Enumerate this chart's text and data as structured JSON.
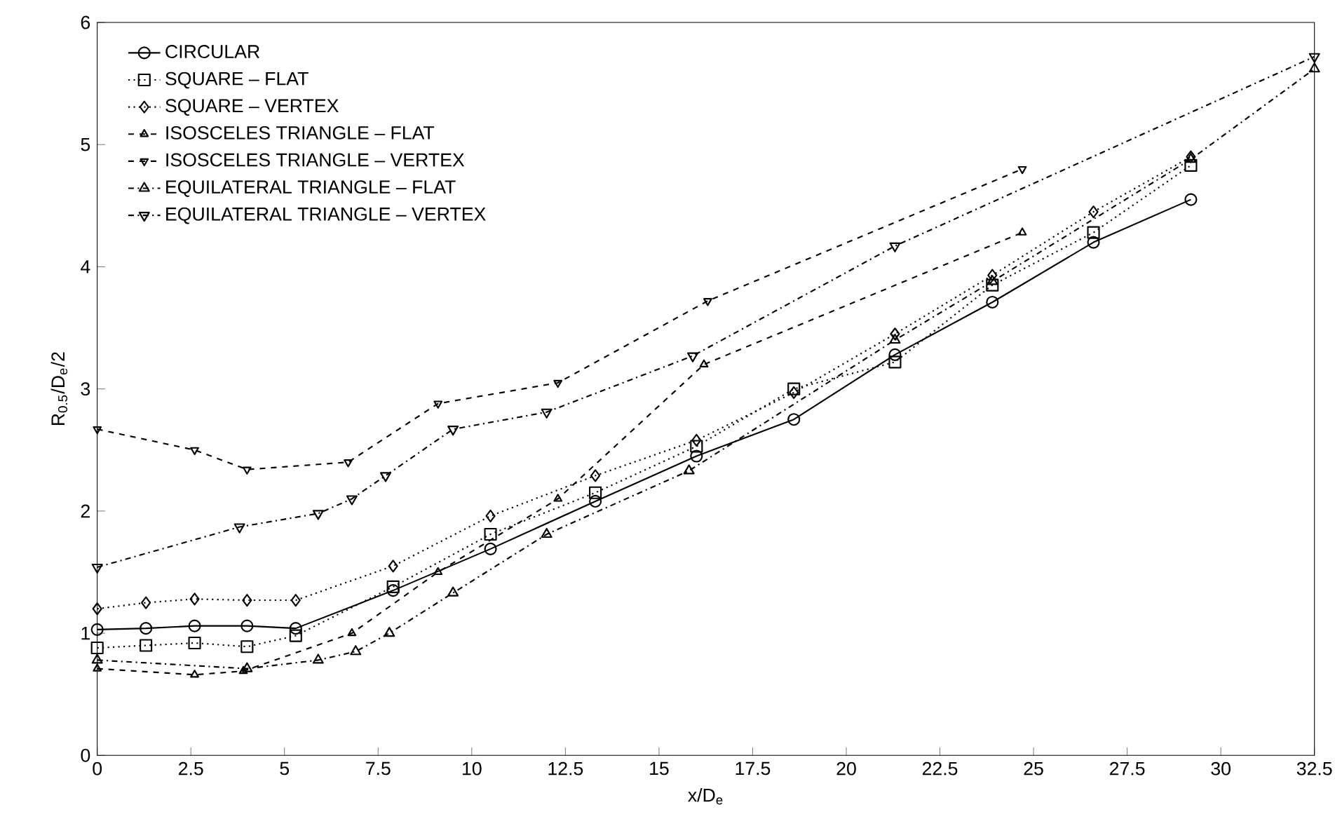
{
  "chart_data": {
    "type": "line",
    "xlabel": "x/D$_{e}$",
    "ylabel": "R$_{0.5}$/D$_{e}$/2",
    "xlim": [
      0,
      32.5
    ],
    "ylim": [
      0,
      6
    ],
    "xticks": [
      0,
      2.5,
      5,
      7.5,
      10,
      12.5,
      15,
      17.5,
      20,
      22.5,
      25,
      27.5,
      30,
      32.5
    ],
    "yticks": [
      0,
      1,
      2,
      3,
      4,
      5,
      6
    ],
    "grid": false,
    "legend": "top left",
    "series": [
      {
        "name": "CIRCULAR",
        "color": "#000000",
        "marker": "circle",
        "line_style": "solid",
        "x": [
          0,
          1.3,
          2.6,
          4.0,
          5.3,
          7.9,
          10.5,
          13.3,
          16.0,
          18.6,
          21.3,
          23.9,
          26.6,
          29.2
        ],
        "values": [
          1.03,
          1.04,
          1.06,
          1.06,
          1.04,
          1.35,
          1.69,
          2.08,
          2.45,
          2.75,
          3.28,
          3.71,
          4.2,
          4.55
        ]
      },
      {
        "name": "SQUARE – FLAT",
        "color": "#000000",
        "marker": "square",
        "line_style": "dotted",
        "x": [
          0,
          1.3,
          2.6,
          4.0,
          5.3,
          7.9,
          10.5,
          13.3,
          16.0,
          18.6,
          21.3,
          23.9,
          26.6,
          29.2
        ],
        "values": [
          0.88,
          0.9,
          0.92,
          0.89,
          0.98,
          1.38,
          1.81,
          2.15,
          2.53,
          3.0,
          3.22,
          3.85,
          4.28,
          4.83
        ]
      },
      {
        "name": "SQUARE – VERTEX",
        "color": "#000000",
        "marker": "diamond",
        "line_style": "dotted",
        "x": [
          0,
          1.3,
          2.6,
          4.0,
          5.3,
          7.9,
          10.5,
          13.3,
          16.0,
          18.6,
          21.3,
          23.9,
          26.6,
          29.2
        ],
        "values": [
          1.2,
          1.25,
          1.28,
          1.27,
          1.27,
          1.55,
          1.96,
          2.29,
          2.58,
          2.97,
          3.45,
          3.93,
          4.45,
          4.9
        ]
      },
      {
        "name": "ISOSCELES TRIANGLE – FLAT",
        "color": "#000000",
        "marker": "triangle",
        "line_style": "dashed",
        "x": [
          0,
          2.6,
          3.9,
          6.8,
          9.1,
          12.3,
          16.2,
          24.7
        ],
        "values": [
          0.71,
          0.66,
          0.69,
          1.0,
          1.5,
          2.1,
          3.2,
          4.28
        ]
      },
      {
        "name": "ISOSCELES TRIANGLE – VERTEX",
        "color": "#000000",
        "marker": "triangle-down",
        "line_style": "dashed",
        "x": [
          0,
          2.6,
          4.0,
          6.7,
          9.1,
          12.3,
          16.3,
          24.7
        ],
        "values": [
          2.67,
          2.5,
          2.34,
          2.4,
          2.88,
          3.05,
          3.72,
          4.8
        ]
      },
      {
        "name": "EQUILATERAL TRIANGLE – FLAT",
        "color": "#000000",
        "marker": "triangle",
        "line_style": "dashdot",
        "x": [
          0,
          4.0,
          5.9,
          6.9,
          7.8,
          9.5,
          12.0,
          15.8,
          21.3,
          23.9,
          29.2,
          32.5
        ],
        "values": [
          0.78,
          0.71,
          0.78,
          0.85,
          1.0,
          1.33,
          1.81,
          2.33,
          3.4,
          3.88,
          4.88,
          5.62
        ]
      },
      {
        "name": "EQUILATERAL TRIANGLE – VERTEX",
        "color": "#000000",
        "marker": "triangle-down",
        "line_style": "dashdot",
        "x": [
          0,
          3.8,
          5.9,
          6.8,
          7.7,
          9.5,
          12.0,
          15.9,
          21.3,
          32.5
        ],
        "values": [
          1.54,
          1.87,
          1.98,
          2.1,
          2.29,
          2.67,
          2.81,
          3.27,
          4.17,
          5.72
        ]
      }
    ]
  }
}
